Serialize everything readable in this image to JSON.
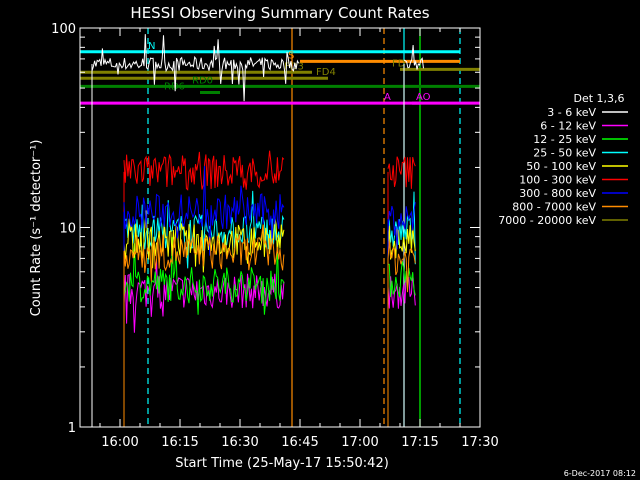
{
  "chart_data": {
    "type": "line",
    "title": "HESSI Observing Summary Count Rates",
    "xlabel": "Start Time (25-May-17 15:50:42)",
    "ylabel": "Count Rate (s⁻¹ detector⁻¹)",
    "yscale": "log",
    "ylim": [
      1,
      100
    ],
    "xlim": [
      "15:50",
      "17:30"
    ],
    "x_ticks": [
      "16:00",
      "16:15",
      "16:30",
      "16:45",
      "17:00",
      "17:15",
      "17:30"
    ],
    "y_ticks": [
      "1",
      "10",
      "100"
    ],
    "legend_title": "Det 1,3,6",
    "legend_position": "right",
    "footer": "6-Dec-2017 08:12",
    "series": [
      {
        "name": "3 - 6 keV",
        "color": "#ffffff",
        "segments": [
          {
            "start": "15:53",
            "end": "16:45",
            "level": 66
          },
          {
            "start": "17:11",
            "end": "17:16",
            "level": 66
          }
        ]
      },
      {
        "name": "6 - 12 keV",
        "color": "#ff00ff",
        "segments": [
          {
            "start": "16:01",
            "end": "16:41",
            "level": 4.8
          },
          {
            "start": "17:07",
            "end": "17:14",
            "level": 4.8
          }
        ]
      },
      {
        "name": "12 - 25 keV",
        "color": "#00ff00",
        "segments": [
          {
            "start": "16:01",
            "end": "16:41",
            "level": 5.2
          },
          {
            "start": "17:07",
            "end": "17:14",
            "level": 5.4
          }
        ]
      },
      {
        "name": "25 - 50 keV",
        "color": "#00ffff",
        "segments": [
          {
            "start": "16:01",
            "end": "16:41",
            "level": 9.5
          },
          {
            "start": "17:07",
            "end": "17:14",
            "level": 9.5
          }
        ]
      },
      {
        "name": "50 - 100 keV",
        "color": "#ffff00",
        "segments": [
          {
            "start": "16:01",
            "end": "16:41",
            "level": 8.5
          },
          {
            "start": "17:07",
            "end": "17:14",
            "level": 8.5
          }
        ]
      },
      {
        "name": "100 - 300 keV",
        "color": "#ff0000",
        "segments": [
          {
            "start": "16:01",
            "end": "16:41",
            "level": 19
          },
          {
            "start": "17:07",
            "end": "17:14",
            "level": 19
          }
        ]
      },
      {
        "name": "300 - 800 keV",
        "color": "#0000ff",
        "segments": [
          {
            "start": "16:01",
            "end": "16:41",
            "level": 12
          },
          {
            "start": "17:07",
            "end": "17:14",
            "level": 11
          }
        ]
      },
      {
        "name": "800 - 7000 keV",
        "color": "#ff8c00",
        "segments": [
          {
            "start": "16:01",
            "end": "16:41",
            "level": 7.5
          },
          {
            "start": "17:07",
            "end": "17:14",
            "level": 7
          }
        ]
      },
      {
        "name": "7000 - 20000 keV",
        "color": "#808000",
        "segments": []
      }
    ],
    "flag_bars": [
      {
        "label": "N",
        "color": "#00ffff",
        "start": "15:50",
        "end": "17:25",
        "level": 76,
        "label_time": "16:07"
      },
      {
        "label": "S",
        "color": "#ff8c00",
        "start": "16:45",
        "end": "17:25",
        "level": 68,
        "label_time": "16:42"
      },
      {
        "label": "FD",
        "color": "#808000",
        "start": "17:10",
        "end": "17:30",
        "level": 62,
        "label_time": "17:08"
      },
      {
        "label": "FD3",
        "color": "#808000",
        "start": "15:50",
        "end": "16:48",
        "level": 60,
        "label_time": "16:41"
      },
      {
        "label": "FD4",
        "color": "#808000",
        "start": "15:50",
        "end": "16:52",
        "level": 56,
        "label_time": "16:49"
      },
      {
        "label": "RD0",
        "color": "#008000",
        "start": "15:50",
        "end": "17:30",
        "level": 51,
        "label_time": "16:18"
      },
      {
        "label": "RD6",
        "color": "#008000",
        "start": "16:20",
        "end": "16:25",
        "level": 47.5,
        "label_time": "16:11"
      },
      {
        "label": "A",
        "color": "#ff00ff",
        "start": "15:50",
        "end": "17:30",
        "level": 42,
        "label_time": "17:06"
      },
      {
        "label": "AO",
        "color": "#ff00ff",
        "start": "17:13",
        "end": "17:15",
        "level": 42,
        "label_time": "17:14"
      }
    ],
    "vertical_markers": [
      {
        "time": "16:07",
        "color": "#00ffff",
        "style": "dashed"
      },
      {
        "time": "16:43",
        "color": "#ff8c00",
        "style": "solid"
      },
      {
        "time": "17:06",
        "color": "#ff8c00",
        "style": "dashed"
      },
      {
        "time": "17:11",
        "color": "#00ffff",
        "style": "solid"
      },
      {
        "time": "17:15",
        "color": "#00ff00",
        "style": "solid"
      },
      {
        "time": "17:25",
        "color": "#00ffff",
        "style": "dashed"
      }
    ]
  }
}
